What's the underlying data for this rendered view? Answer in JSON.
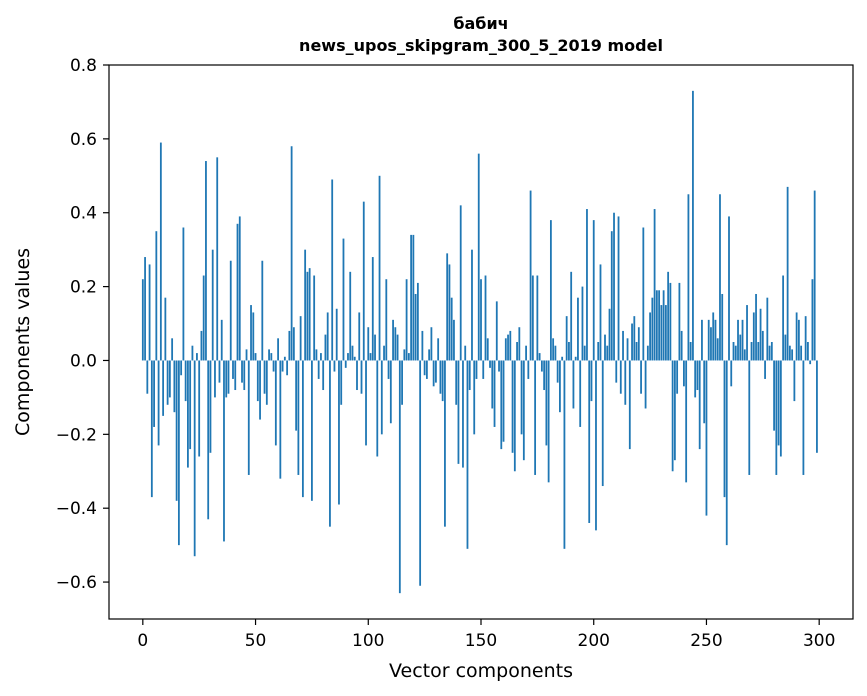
{
  "chart_data": {
    "type": "bar",
    "title": "бабич",
    "subtitle": "news_upos_skipgram_300_5_2019 model",
    "xlabel": "Vector components",
    "ylabel": "Components values",
    "xlim": [
      -15,
      315
    ],
    "ylim": [
      -0.7,
      0.8
    ],
    "xticks": [
      0,
      50,
      100,
      150,
      200,
      250,
      300
    ],
    "yticks": [
      -0.6,
      -0.4,
      -0.2,
      0.0,
      0.2,
      0.4,
      0.6,
      0.8
    ],
    "xtick_labels": [
      "0",
      "50",
      "100",
      "150",
      "200",
      "250",
      "300"
    ],
    "ytick_labels": [
      "−0.6",
      "−0.4",
      "−0.2",
      "0.0",
      "0.2",
      "0.4",
      "0.6",
      "0.8"
    ],
    "bar_color": "#1f77b4",
    "grid": false,
    "values": [
      0.22,
      0.28,
      -0.09,
      0.26,
      -0.37,
      -0.18,
      0.35,
      -0.23,
      0.59,
      -0.15,
      0.17,
      -0.12,
      -0.1,
      0.06,
      -0.14,
      -0.38,
      -0.5,
      -0.04,
      0.36,
      -0.11,
      -0.29,
      -0.24,
      0.04,
      -0.53,
      0.02,
      -0.26,
      0.08,
      0.23,
      0.54,
      -0.43,
      -0.25,
      0.3,
      -0.1,
      0.55,
      -0.06,
      0.11,
      -0.49,
      -0.1,
      -0.09,
      0.27,
      -0.05,
      -0.08,
      0.37,
      0.39,
      -0.06,
      -0.08,
      0.03,
      -0.31,
      0.15,
      0.13,
      0.02,
      -0.11,
      -0.16,
      0.27,
      -0.09,
      -0.12,
      0.03,
      0.02,
      -0.03,
      -0.23,
      0.06,
      -0.32,
      -0.03,
      0.01,
      -0.04,
      0.08,
      0.58,
      0.09,
      -0.19,
      -0.31,
      0.12,
      -0.37,
      0.3,
      0.24,
      0.25,
      -0.38,
      0.23,
      0.03,
      -0.05,
      0.02,
      -0.08,
      0.07,
      0.13,
      -0.45,
      0.49,
      -0.03,
      0.14,
      -0.39,
      -0.12,
      0.33,
      -0.02,
      0.02,
      0.24,
      0.04,
      0.01,
      -0.08,
      0.13,
      -0.09,
      0.43,
      -0.23,
      0.09,
      0.02,
      0.28,
      0.07,
      -0.26,
      0.5,
      -0.2,
      0.04,
      0.22,
      -0.05,
      -0.17,
      0.11,
      0.09,
      0.07,
      -0.63,
      -0.12,
      0.03,
      0.22,
      0.02,
      0.34,
      0.34,
      0.18,
      0.21,
      -0.61,
      0.08,
      -0.04,
      -0.05,
      0.03,
      0.09,
      -0.07,
      -0.06,
      0.06,
      -0.09,
      -0.11,
      -0.45,
      0.29,
      0.26,
      0.17,
      0.11,
      -0.12,
      -0.28,
      0.42,
      -0.29,
      0.04,
      -0.51,
      -0.08,
      0.3,
      -0.2,
      -0.05,
      0.56,
      0.22,
      -0.05,
      0.23,
      0.06,
      -0.02,
      -0.13,
      -0.18,
      0.16,
      -0.03,
      -0.24,
      -0.22,
      0.06,
      0.07,
      0.08,
      -0.25,
      -0.3,
      0.05,
      0.09,
      -0.2,
      -0.27,
      0.04,
      -0.05,
      0.46,
      0.23,
      -0.31,
      0.23,
      0.02,
      -0.03,
      -0.08,
      -0.23,
      -0.33,
      0.38,
      0.06,
      0.04,
      -0.06,
      -0.14,
      0.01,
      -0.51,
      0.12,
      0.05,
      0.24,
      -0.13,
      0.01,
      0.17,
      -0.18,
      0.2,
      0.04,
      0.41,
      -0.44,
      -0.11,
      0.38,
      -0.46,
      0.05,
      0.26,
      -0.34,
      0.07,
      0.04,
      0.14,
      0.35,
      0.4,
      -0.06,
      0.39,
      -0.09,
      0.08,
      -0.12,
      0.06,
      -0.24,
      0.1,
      0.12,
      0.05,
      0.09,
      -0.09,
      0.36,
      -0.13,
      0.04,
      0.13,
      0.17,
      0.41,
      0.19,
      0.19,
      0.15,
      0.19,
      0.15,
      0.24,
      0.21,
      -0.3,
      -0.27,
      -0.09,
      0.21,
      0.08,
      -0.07,
      -0.33,
      0.45,
      0.05,
      0.73,
      -0.1,
      -0.08,
      -0.24,
      0.11,
      -0.17,
      -0.42,
      0.11,
      0.09,
      0.13,
      0.11,
      0.06,
      0.45,
      0.18,
      -0.37,
      -0.5,
      0.39,
      -0.07,
      0.05,
      0.04,
      0.11,
      0.07,
      0.11,
      0.03,
      0.15,
      -0.31,
      0.05,
      0.13,
      0.18,
      0.05,
      0.14,
      0.08,
      -0.05,
      0.17,
      0.04,
      0.05,
      -0.19,
      -0.31,
      -0.23,
      -0.26,
      0.23,
      0.07,
      0.47,
      0.04,
      0.03,
      -0.11,
      0.13,
      0.11,
      0.04,
      -0.31,
      0.12,
      0.05,
      -0.01,
      0.22,
      0.46,
      -0.25
    ]
  }
}
